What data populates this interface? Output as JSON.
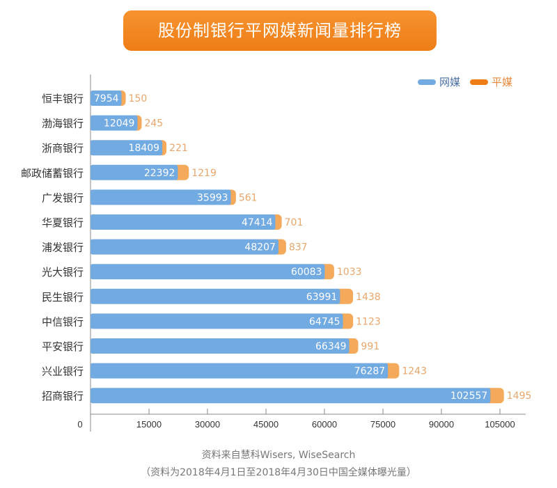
{
  "chart_data": {
    "type": "bar",
    "orientation": "horizontal",
    "stacked": true,
    "title": "股份制银行平网媒新闻量排行榜",
    "categories": [
      "恒丰银行",
      "渤海银行",
      "浙商银行",
      "邮政储蓄银行",
      "广发银行",
      "华夏银行",
      "浦发银行",
      "光大银行",
      "民生银行",
      "中信银行",
      "平安银行",
      "兴业银行",
      "招商银行"
    ],
    "series": [
      {
        "name": "网媒",
        "color": "#72aae2",
        "values": [
          7954,
          12049,
          18409,
          22392,
          35993,
          47414,
          48207,
          60083,
          63991,
          64745,
          66349,
          76287,
          102557
        ]
      },
      {
        "name": "平媒",
        "color": "#f4a95b",
        "values": [
          150,
          245,
          221,
          1219,
          561,
          701,
          837,
          1033,
          1438,
          1123,
          991,
          1243,
          1495
        ]
      }
    ],
    "xlim": [
      0,
      105000
    ],
    "xticks": [
      "0",
      "15000",
      "30000",
      "45000",
      "60000",
      "75000",
      "90000",
      "105000"
    ],
    "legend_position": "top-right",
    "label_colors": {
      "print": "#e8a66a",
      "axis": "#333333",
      "legend_web": "#4a6fa5",
      "legend_print": "#e8893a"
    },
    "source": "资料来自慧科Wisers, WiseSearch",
    "note": "（资料为2018年4月1日至2018年4月30日中国全媒体曝光量）"
  }
}
